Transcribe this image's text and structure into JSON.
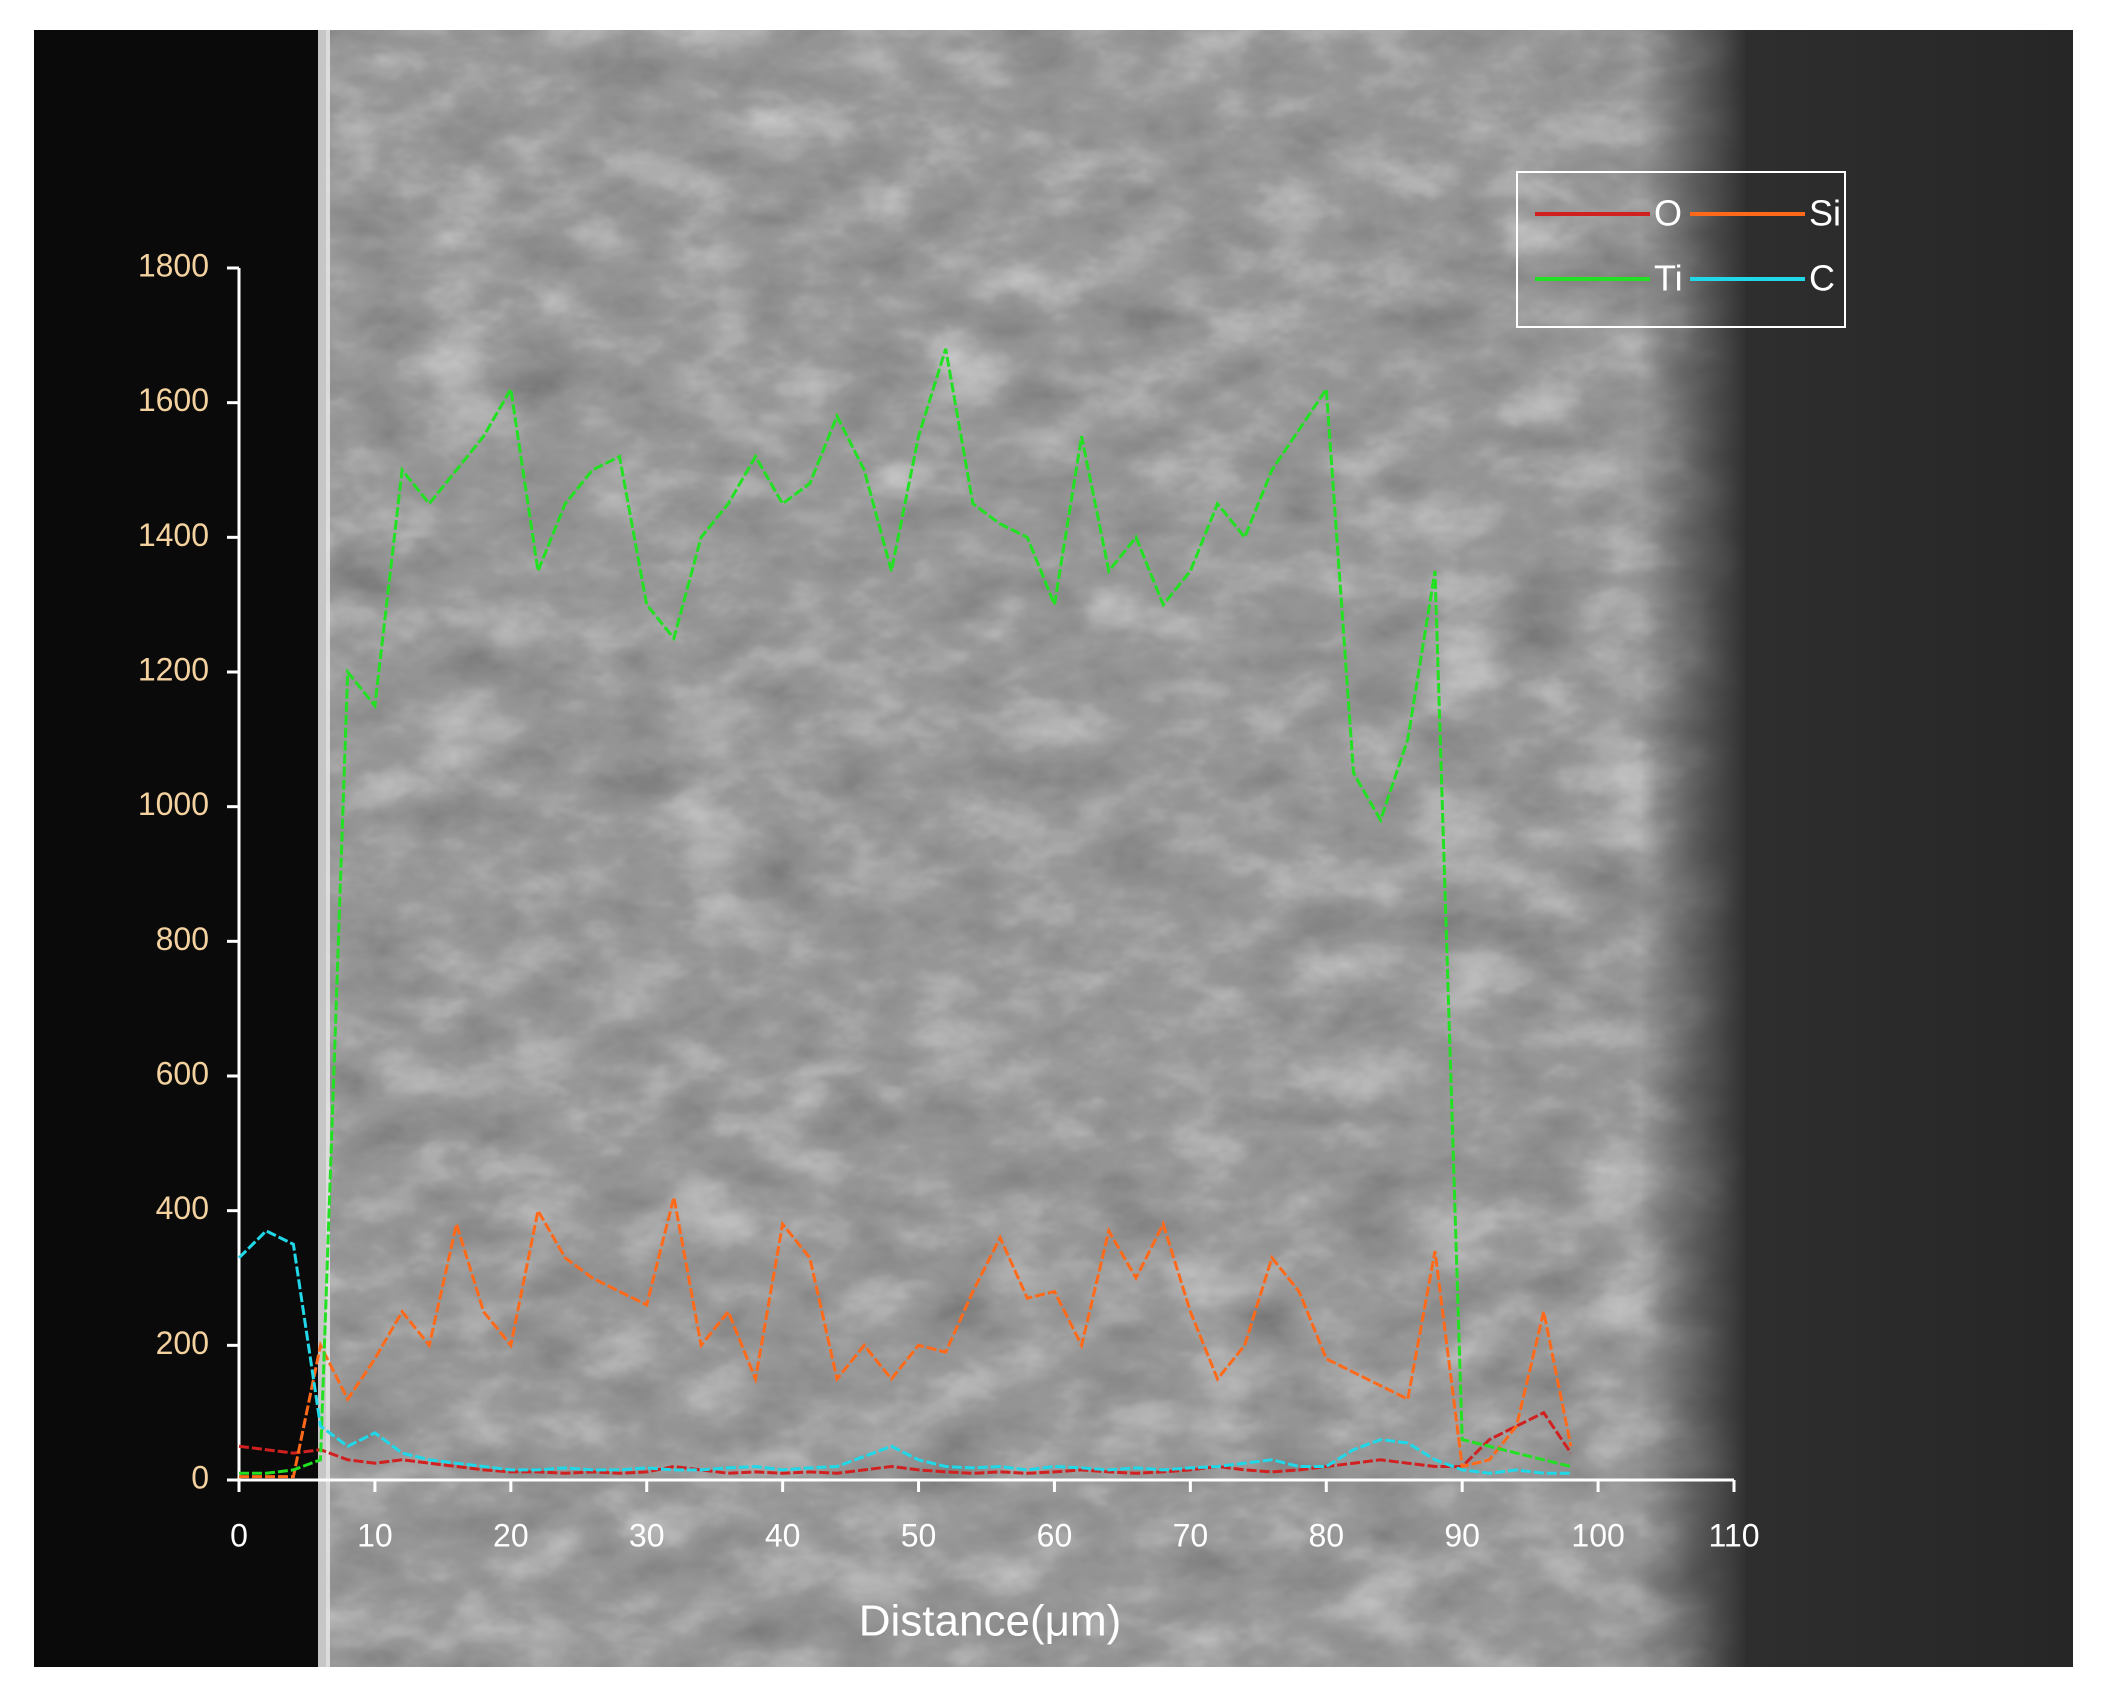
{
  "chart_data": {
    "type": "line",
    "xlabel": "Distance(μm)",
    "xlim": [
      0,
      110
    ],
    "xticks": [
      0,
      10,
      20,
      30,
      40,
      50,
      60,
      70,
      80,
      90,
      100,
      110
    ],
    "ylim": [
      0,
      1800
    ],
    "yticks": [
      0,
      200,
      400,
      600,
      800,
      1000,
      1200,
      1400,
      1600,
      1800
    ],
    "x": [
      0,
      2,
      4,
      6,
      8,
      10,
      12,
      14,
      16,
      18,
      20,
      22,
      24,
      26,
      28,
      30,
      32,
      34,
      36,
      38,
      40,
      42,
      44,
      46,
      48,
      50,
      52,
      54,
      56,
      58,
      60,
      62,
      64,
      66,
      68,
      70,
      72,
      74,
      76,
      78,
      80,
      82,
      84,
      86,
      88,
      90,
      92,
      94,
      96,
      98
    ],
    "series": [
      {
        "name": "O",
        "color": "#d02020",
        "values": [
          50,
          45,
          40,
          45,
          30,
          25,
          30,
          25,
          20,
          15,
          12,
          12,
          10,
          12,
          10,
          12,
          20,
          15,
          10,
          12,
          10,
          12,
          10,
          15,
          20,
          15,
          12,
          10,
          12,
          10,
          12,
          15,
          12,
          10,
          12,
          15,
          20,
          15,
          12,
          15,
          20,
          25,
          30,
          25,
          20,
          20,
          60,
          80,
          100,
          40
        ]
      },
      {
        "name": "Si",
        "color": "#ff6a1a",
        "values": [
          5,
          5,
          5,
          200,
          120,
          180,
          250,
          200,
          380,
          250,
          200,
          400,
          330,
          300,
          280,
          260,
          420,
          200,
          250,
          150,
          380,
          330,
          150,
          200,
          150,
          200,
          190,
          280,
          360,
          270,
          280,
          200,
          370,
          300,
          380,
          250,
          150,
          200,
          330,
          280,
          180,
          160,
          140,
          120,
          340,
          20,
          30,
          80,
          250,
          50
        ]
      },
      {
        "name": "Ti",
        "color": "#22e022",
        "values": [
          10,
          10,
          15,
          30,
          1200,
          1150,
          1500,
          1450,
          1500,
          1550,
          1620,
          1350,
          1450,
          1500,
          1520,
          1300,
          1250,
          1400,
          1450,
          1520,
          1450,
          1480,
          1580,
          1500,
          1350,
          1550,
          1680,
          1450,
          1420,
          1400,
          1300,
          1550,
          1350,
          1400,
          1300,
          1350,
          1450,
          1400,
          1500,
          1560,
          1620,
          1050,
          980,
          1100,
          1350,
          60,
          50,
          40,
          30,
          20
        ]
      },
      {
        "name": "C",
        "color": "#20d8e8",
        "values": [
          330,
          370,
          350,
          80,
          50,
          70,
          40,
          30,
          25,
          20,
          15,
          15,
          18,
          15,
          15,
          18,
          15,
          15,
          18,
          20,
          15,
          18,
          20,
          35,
          50,
          30,
          20,
          18,
          20,
          15,
          20,
          18,
          15,
          18,
          15,
          18,
          20,
          25,
          30,
          20,
          20,
          45,
          60,
          55,
          30,
          15,
          10,
          15,
          10,
          10
        ]
      }
    ],
    "legend": "upper right"
  }
}
